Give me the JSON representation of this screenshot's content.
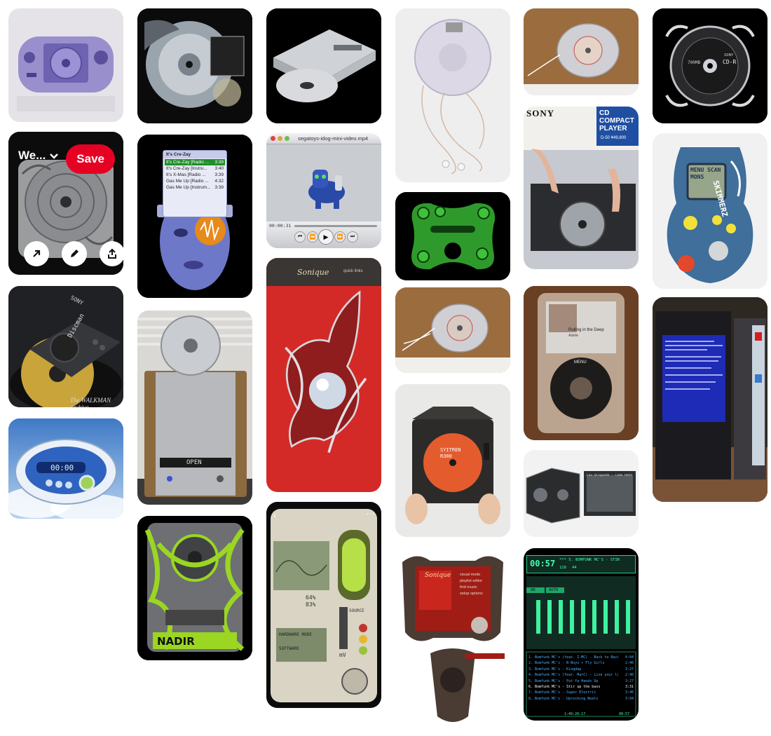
{
  "hover_pin": {
    "board_label": "We...",
    "save_label": "Save"
  },
  "pins": {
    "player_title": "segatoys-idog-mini-video.mp4",
    "player_time": "00:00:31",
    "playlist_title": "It's Cre-Zay",
    "playlist": [
      {
        "title": "It's Cre-Zay [Radio ...",
        "time": "3:39"
      },
      {
        "title": "It's Cre-Zay [Instru...",
        "time": "3:40"
      },
      {
        "title": "It's X-Mas [Radio ...",
        "time": "3:39"
      },
      {
        "title": "Gas Me Up [Radio ...",
        "time": "4:32"
      },
      {
        "title": "Gas Me Up [Instrum...",
        "time": "3:39"
      }
    ],
    "discman_brand": "SONY",
    "discman_name": "Discman",
    "discman_caption": "The WALKMAN archive",
    "cd_player_brand": "SONY",
    "cd_player_box": "CD COMPACT PLAYER",
    "cd_player_model": "D-50 ¥49,800",
    "cdr_capacity": "700MB",
    "cdr_label": "CD-R",
    "cdr_brand": "SONY",
    "skimmerz_label": "SKIMMERZ",
    "skimmerz_screen": "MENU SCAN MONS",
    "nadir_label": "NADIR",
    "stereo_label": "OPEN",
    "syitren_label": "SYITREN R300",
    "ipod_song": "Rolling in the Deep",
    "ipod_artist": "Adele",
    "ipod_menu": "MENU",
    "skin_time": "00:00",
    "winamp_time": "00:57",
    "winamp_title": "*** 5. BOMFUNK MC'S - STIR",
    "winamp_bitrate": "128",
    "winamp_khz": "44",
    "winamp_btn_on": "ON",
    "winamp_btn_auto": "AUTO",
    "winamp_playlist": [
      {
        "title": "1. Bomfunk MC's (feat. Z-MC) - Back to Back",
        "time": "4:04"
      },
      {
        "title": "2. Bomfunk MC's - B-Boys + Fly Girls",
        "time": "2:46"
      },
      {
        "title": "3. Bomfunk MC's - Kingdap",
        "time": "3:27"
      },
      {
        "title": "4. Bomfunk MC's (feat. MarC) - Live your life",
        "time": "2:46"
      },
      {
        "title": "5. Bomfunk MC's - Put Ya Hands Up",
        "time": "3:27"
      },
      {
        "title": "6. Bomfunk MC's - Stir up the bass",
        "time": "3:31"
      },
      {
        "title": "7. Bomfunk MC's - Super Electric",
        "time": "3:46"
      },
      {
        "title": "8. Bomfunk MC's - Uprocking Beats",
        "time": "3:04"
      }
    ],
    "winamp_total": "1:49:20:17",
    "winamp_footer": "00:57",
    "sonique_label": "Sonique",
    "sonique_links": "quick links",
    "sonique_menu": [
      "visual mode",
      "playlist editor",
      "find music",
      "setup options"
    ],
    "scifi_labels": [
      "64%",
      "83%",
      "SOURCE",
      "mV",
      "HARDWARE MODE",
      "SOFTWARE"
    ],
    "wm_list": [
      "Lou Disguede - Come Hate Ever Time Em"
    ]
  }
}
